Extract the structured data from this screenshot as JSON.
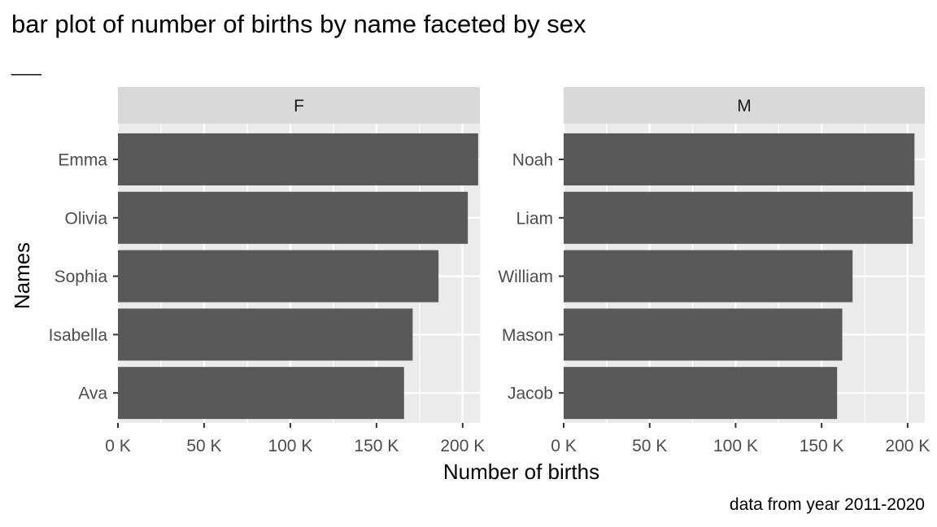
{
  "chart_data": {
    "type": "bar",
    "orientation": "horizontal",
    "title": "bar plot of number of births by name faceted by sex",
    "subtitle": "___",
    "xlabel": "Number of births",
    "ylabel": "Names",
    "caption": "data from year 2011-2020",
    "xlim": [
      0,
      210000
    ],
    "x_ticks": [
      0,
      50000,
      100000,
      150000,
      200000
    ],
    "x_tick_labels": [
      "0 K",
      "50 K",
      "100 K",
      "150 K",
      "200 K"
    ],
    "grid": true,
    "facets": [
      {
        "label": "F",
        "categories": [
          "Emma",
          "Olivia",
          "Sophia",
          "Isabella",
          "Ava"
        ],
        "values": [
          209000,
          203000,
          186000,
          171000,
          166000
        ]
      },
      {
        "label": "M",
        "categories": [
          "Noah",
          "Liam",
          "William",
          "Mason",
          "Jacob"
        ],
        "values": [
          204000,
          203000,
          168000,
          162000,
          159000
        ]
      }
    ],
    "colors": {
      "bar": "#595959",
      "panel": "#ebebeb",
      "strip": "#d9d9d9",
      "grid": "#ffffff",
      "tick": "#333333"
    }
  }
}
